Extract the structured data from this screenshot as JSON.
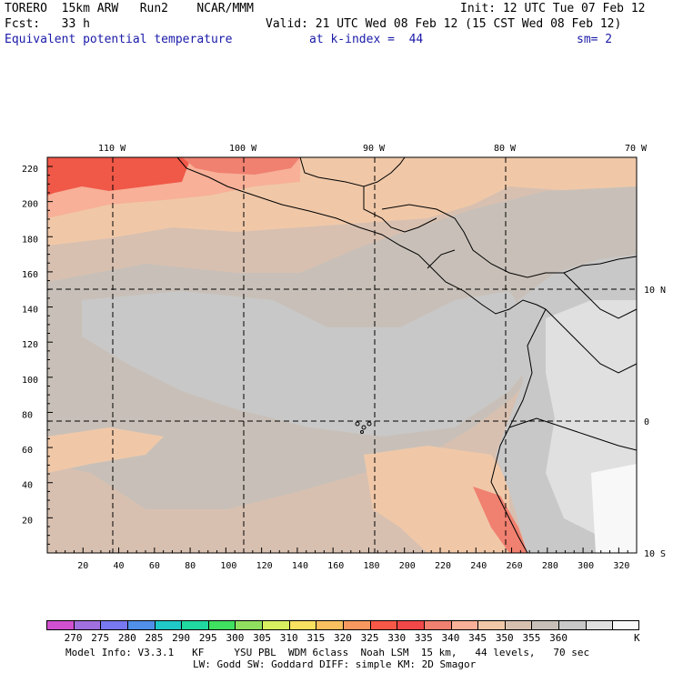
{
  "header": {
    "model": "TORERO  15km ARW   Run2    NCAR/MMM",
    "init": "Init: 12 UTC Tue 07 Feb 12",
    "fcst": "Fcst:   33 h",
    "valid": "Valid: 21 UTC Wed 08 Feb 12 (15 CST Wed 08 Feb 12)",
    "field": "Equivalent potential temperature",
    "level": "at k-index =  44",
    "smooth": "sm= 2"
  },
  "map": {
    "lon_labels": [
      "110 W",
      "100 W",
      "90 W",
      "80 W",
      "70 W"
    ],
    "lat_labels": [
      "10 N",
      "0",
      "10 S"
    ],
    "y_ticks": [
      "220",
      "200",
      "180",
      "160",
      "140",
      "120",
      "100",
      "80",
      "60",
      "40",
      "20"
    ],
    "x_ticks": [
      "20",
      "40",
      "60",
      "80",
      "100",
      "120",
      "140",
      "160",
      "180",
      "200",
      "220",
      "240",
      "260",
      "280",
      "300",
      "320"
    ]
  },
  "colorbar": {
    "colors": [
      "#d050d0",
      "#a070e0",
      "#7878f0",
      "#5090e8",
      "#20c8c8",
      "#20d8a0",
      "#40e060",
      "#90e060",
      "#d8f060",
      "#f8e060",
      "#f8c060",
      "#f89860",
      "#f85848",
      "#f04848",
      "#f08070",
      "#f8b098",
      "#f0c8a8",
      "#d8c0b0",
      "#c8c0b8",
      "#c8c8c8",
      "#e0e0e0",
      "#f8f8f8"
    ],
    "labels": [
      "270",
      "275",
      "280",
      "285",
      "290",
      "295",
      "300",
      "305",
      "310",
      "315",
      "320",
      "325",
      "330",
      "335",
      "340",
      "345",
      "350",
      "355",
      "360",
      "K"
    ]
  },
  "footer": {
    "line1": "Model Info: V3.3.1   KF     YSU PBL  WDM 6class  Noah LSM  15 km,   44 levels,   70 sec",
    "line2": "LW: Godd SW: Goddard DIFF: simple KM: 2D Smagor"
  }
}
